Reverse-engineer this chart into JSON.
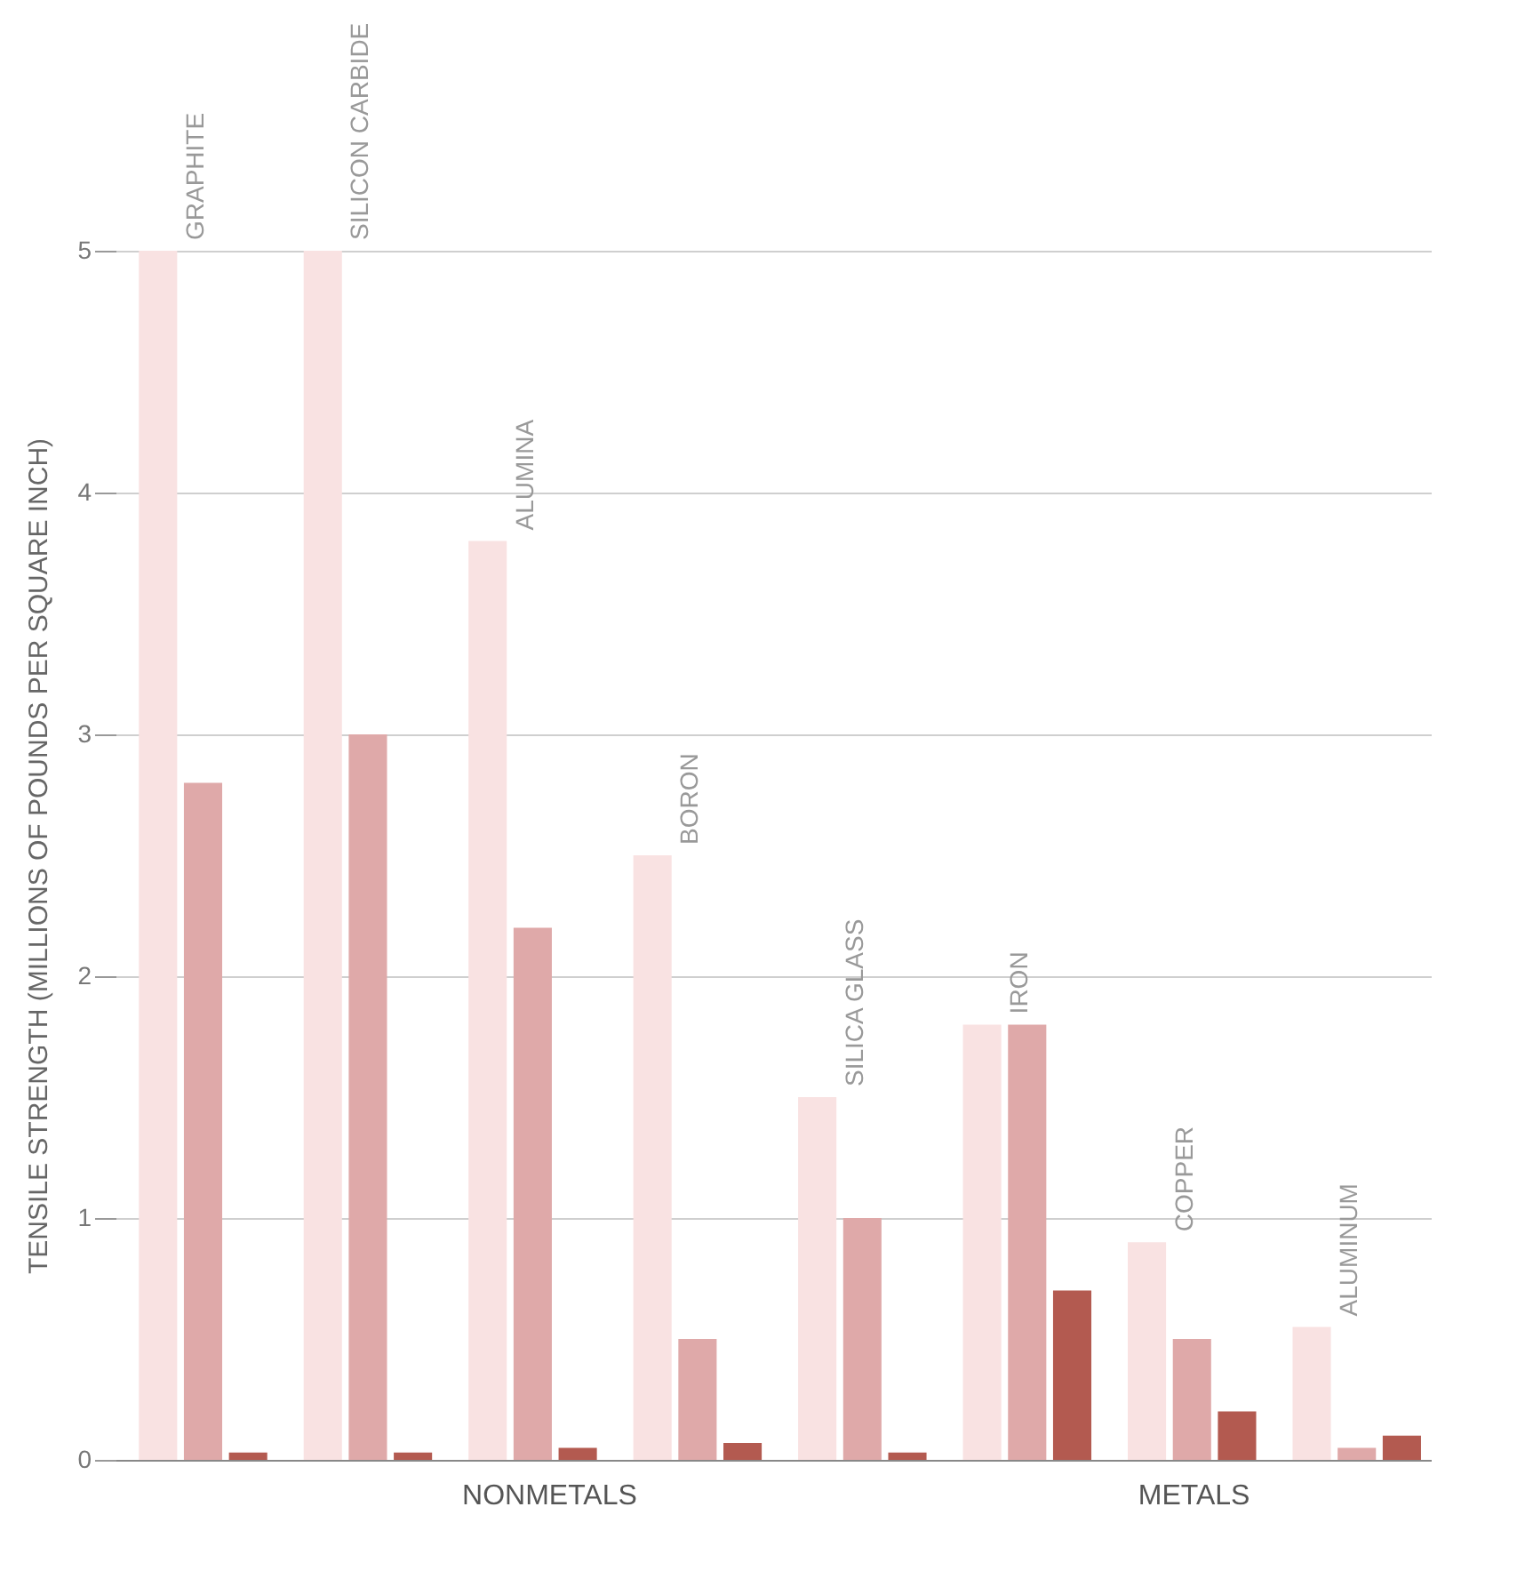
{
  "chart_data": {
    "type": "bar",
    "ylabel": "TENSILE STRENGTH (MILLIONS OF POUNDS PER SQUARE INCH)",
    "categories": [
      "GRAPHITE",
      "SILICON CARBIDE",
      "ALUMINA",
      "BORON",
      "SILICA GLASS",
      "IRON",
      "COPPER",
      "ALUMINUM"
    ],
    "series": [
      {
        "color": "#f9e2e2",
        "values": [
          5.0,
          5.0,
          3.8,
          2.5,
          1.5,
          1.8,
          0.9,
          0.55
        ]
      },
      {
        "color": "#dfa9a9",
        "values": [
          2.8,
          3.0,
          2.2,
          0.5,
          1.0,
          1.8,
          0.5,
          0.05
        ]
      },
      {
        "color": "#b35a50",
        "values": [
          0.03,
          0.03,
          0.05,
          0.07,
          0.03,
          0.7,
          0.2,
          0.1
        ]
      }
    ],
    "ylim": [
      0,
      5
    ],
    "yticks": [
      0,
      1,
      2,
      3,
      4,
      5
    ],
    "grid": "y",
    "legend": false,
    "annotations": [
      "NONMETALS",
      "METALS"
    ]
  }
}
